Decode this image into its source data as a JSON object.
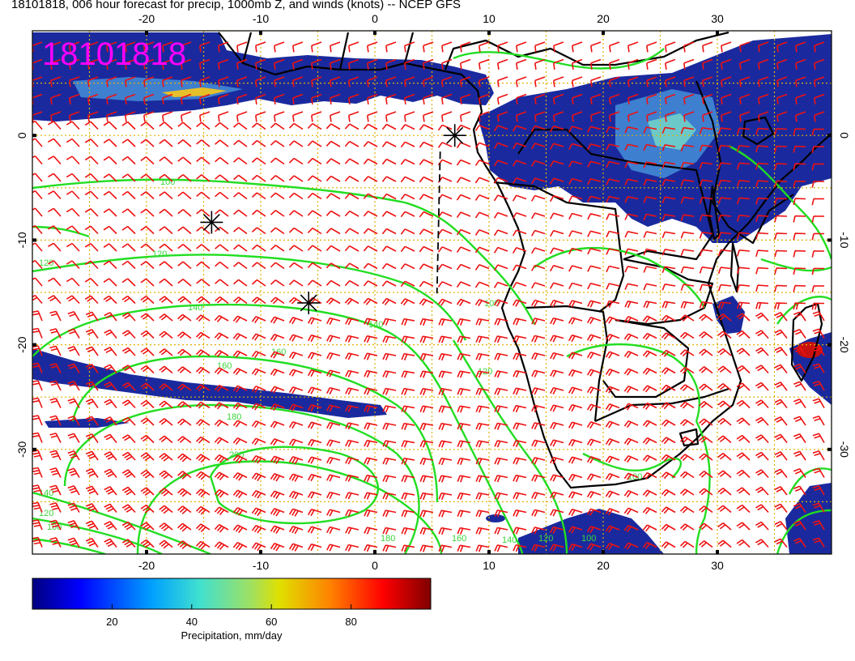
{
  "title": "18101818, 006 hour forecast for precip, 1000mb Z, and winds (knots) -- NCEP GFS",
  "stamp": "18101818",
  "colors": {
    "wind_barbs": "#ee1111",
    "contours": "#22dd22",
    "coast": "#000000",
    "grid": "#e0b000",
    "precip_low": "#1a1f9a",
    "precip_high": "#c81010"
  },
  "map": {
    "lon_range": [
      -30,
      40
    ],
    "lat_range": [
      -40,
      10
    ],
    "lon_ticks": [
      "-20",
      "-10",
      "0",
      "10",
      "20",
      "30"
    ],
    "lat_ticks": [
      "0",
      "-10",
      "-20",
      "-30"
    ],
    "contour_labels": [
      "100",
      "120",
      "120",
      "140",
      "160",
      "160",
      "180",
      "200",
      "140",
      "120",
      "100",
      "140",
      "160",
      "180",
      "120",
      "100",
      "140",
      "100",
      "120",
      "100"
    ],
    "markers": [
      {
        "lon": 7,
        "lat": 0
      },
      {
        "lon": -14.3,
        "lat": -8.3
      },
      {
        "lon": -5.8,
        "lat": -16
      }
    ]
  },
  "colorbar": {
    "label": "Precipitation, mm/day",
    "range": [
      0,
      100
    ],
    "ticks": [
      "20",
      "40",
      "60",
      "80"
    ],
    "tick_values": [
      20,
      40,
      60,
      80
    ]
  }
}
